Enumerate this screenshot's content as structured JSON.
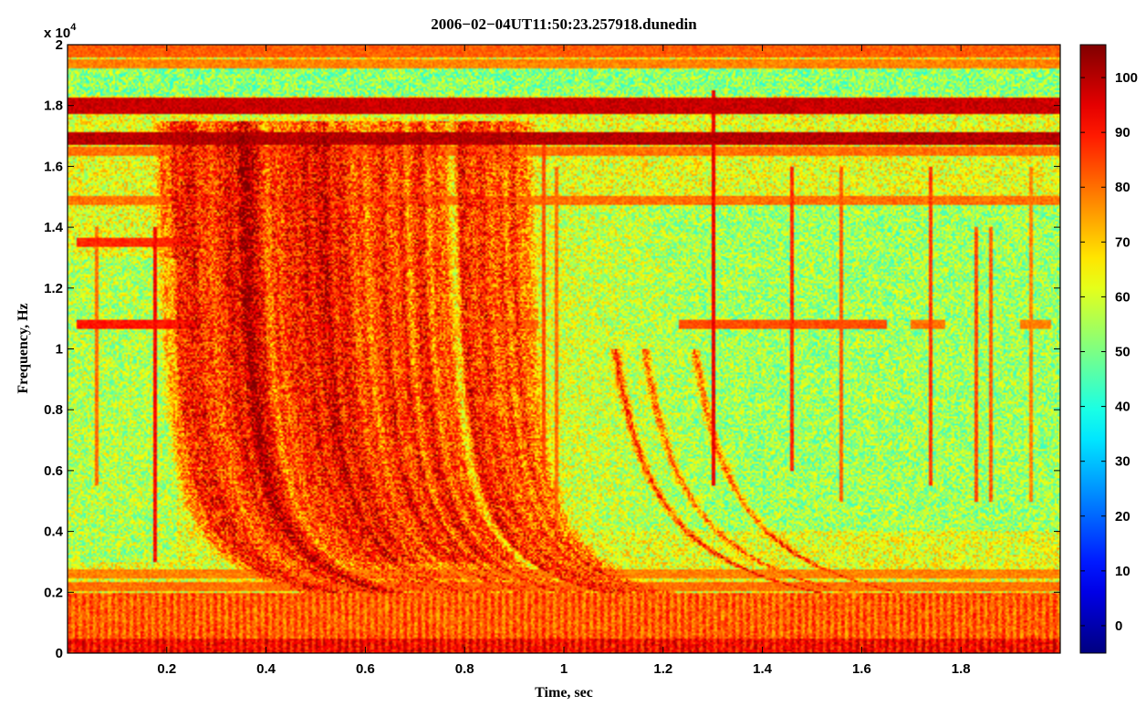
{
  "chart_data": {
    "type": "heatmap",
    "title": "2006−02−04UT11:50:23.257918.dunedin",
    "xlabel": "Time, sec",
    "ylabel": "Frequency, Hz",
    "y_multiplier_label": "x 10",
    "y_multiplier_exponent": "4",
    "xlim": [
      0,
      2
    ],
    "ylim": [
      0,
      20000
    ],
    "xticks": [
      0.2,
      0.4,
      0.6,
      0.8,
      1.0,
      1.2,
      1.4,
      1.6,
      1.8
    ],
    "xtick_labels": [
      "0.2",
      "0.4",
      "0.6",
      "0.8",
      "1",
      "1.2",
      "1.4",
      "1.6",
      "1.8"
    ],
    "yticks": [
      0,
      2000,
      4000,
      6000,
      8000,
      10000,
      12000,
      14000,
      16000,
      18000,
      20000
    ],
    "ytick_labels": [
      "0",
      "0.2",
      "0.4",
      "0.6",
      "0.8",
      "1",
      "1.2",
      "1.4",
      "1.6",
      "1.8",
      "2"
    ],
    "colorbar": {
      "range": [
        -5,
        106
      ],
      "ticks": [
        0,
        10,
        20,
        30,
        40,
        50,
        60,
        70,
        80,
        90,
        100
      ],
      "tick_labels": [
        "0",
        "10",
        "20",
        "30",
        "40",
        "50",
        "60",
        "70",
        "80",
        "90",
        "100"
      ],
      "colormap": "jet"
    },
    "background_level": 62,
    "horizontal_bands": [
      {
        "freq": 19800,
        "level": 82,
        "width": 200
      },
      {
        "freq": 19400,
        "level": 78,
        "width": 150
      },
      {
        "freq": 18000,
        "level": 98,
        "width": 250
      },
      {
        "freq": 16900,
        "level": 100,
        "width": 200
      },
      {
        "freq": 16500,
        "level": 80,
        "width": 150
      },
      {
        "freq": 14900,
        "level": 80,
        "width": 150
      },
      {
        "freq": 2600,
        "level": 78,
        "width": 150
      },
      {
        "freq": 2200,
        "level": 80,
        "width": 150
      }
    ],
    "low_freq_band": {
      "freq_max": 2000,
      "level": 82
    },
    "partial_lines": [
      {
        "freq": 13500,
        "t_start": 0.02,
        "t_end": 0.27,
        "level": 88
      },
      {
        "freq": 10800,
        "t_start": 0.02,
        "t_end": 0.27,
        "level": 90
      },
      {
        "freq": 10800,
        "t_start": 0.85,
        "t_end": 0.95,
        "level": 80
      },
      {
        "freq": 10800,
        "t_start": 1.23,
        "t_end": 1.65,
        "level": 84
      },
      {
        "freq": 10800,
        "t_start": 1.7,
        "t_end": 1.77,
        "level": 80
      },
      {
        "freq": 10800,
        "t_start": 1.92,
        "t_end": 1.98,
        "level": 78
      }
    ],
    "vertical_lines": [
      {
        "time": 0.06,
        "f_min": 5500,
        "f_max": 14000,
        "level": 80
      },
      {
        "time": 0.175,
        "f_min": 3000,
        "f_max": 14000,
        "level": 92
      },
      {
        "time": 0.96,
        "f_min": 6000,
        "f_max": 17000,
        "level": 84
      },
      {
        "time": 0.985,
        "f_min": 3000,
        "f_max": 16000,
        "level": 80
      },
      {
        "time": 1.3,
        "f_min": 5500,
        "f_max": 18500,
        "level": 94
      },
      {
        "time": 1.46,
        "f_min": 6000,
        "f_max": 16000,
        "level": 88
      },
      {
        "time": 1.56,
        "f_min": 5000,
        "f_max": 16000,
        "level": 82
      },
      {
        "time": 1.74,
        "f_min": 5500,
        "f_max": 16000,
        "level": 86
      },
      {
        "time": 1.83,
        "f_min": 5000,
        "f_max": 14000,
        "level": 84
      },
      {
        "time": 1.86,
        "f_min": 5000,
        "f_max": 14000,
        "level": 82
      },
      {
        "time": 1.94,
        "f_min": 5000,
        "f_max": 16000,
        "level": 78
      }
    ]
  }
}
